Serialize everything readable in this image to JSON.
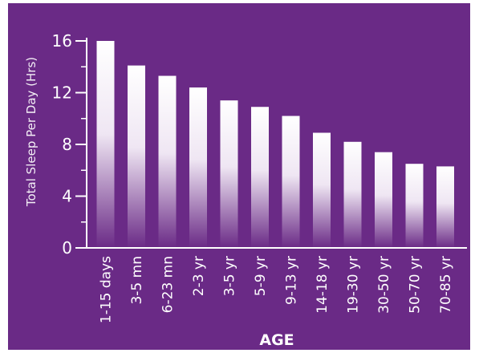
{
  "colors": {
    "background": "#6a2a86",
    "bar_top": "#ffffff",
    "bar_bottom": "#6a2a86",
    "axis": "#ffffff"
  },
  "chart_data": {
    "type": "bar",
    "title": "",
    "xlabel": "AGE",
    "ylabel": "Total Sleep Per Day (Hrs)",
    "ylim": [
      0,
      16
    ],
    "yticks": [
      0,
      4,
      8,
      12,
      16
    ],
    "grid": false,
    "categories": [
      "1-15 days",
      "3-5 mn",
      "6-23 mn",
      "2-3 yr",
      "3-5 yr",
      "5-9 yr",
      "9-13 yr",
      "14-18 yr",
      "19-30 yr",
      "30-50 yr",
      "50-70 yr",
      "70-85 yr"
    ],
    "values": [
      16,
      14.1,
      13.3,
      12.4,
      11.4,
      10.9,
      10.2,
      8.9,
      8.2,
      7.4,
      6.5,
      6.3
    ]
  }
}
